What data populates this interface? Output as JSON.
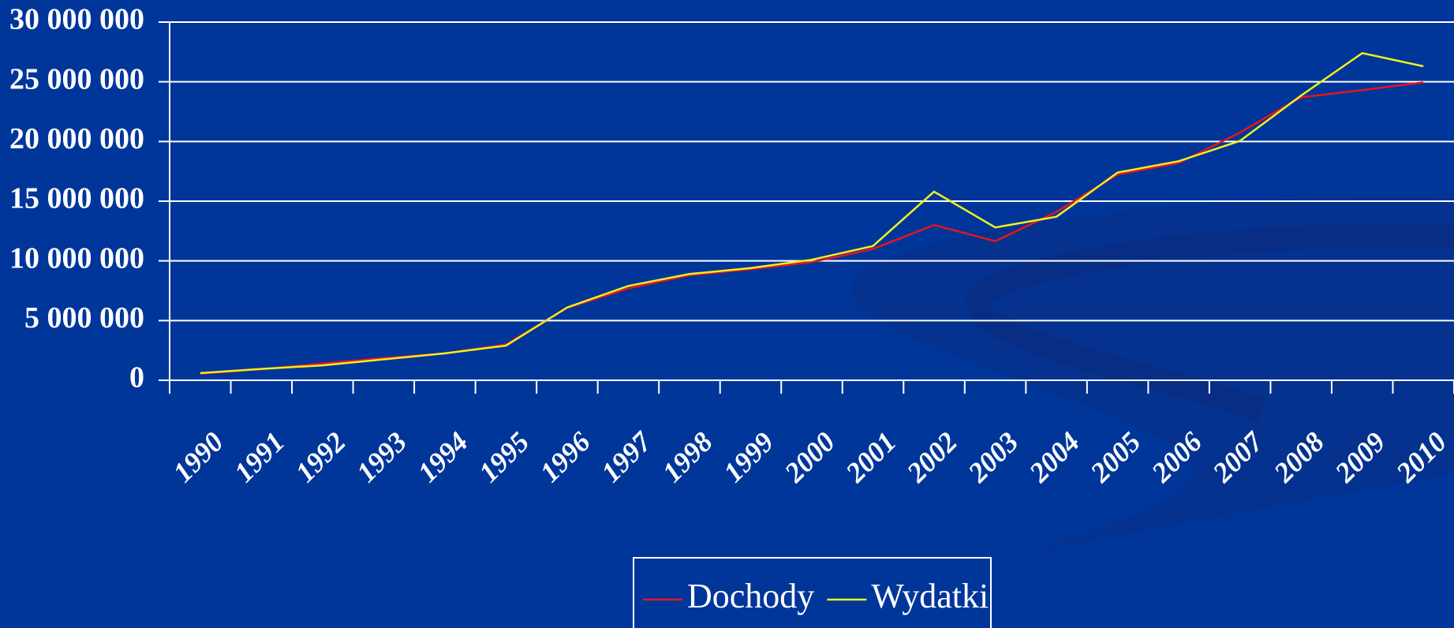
{
  "chart_data": {
    "type": "line",
    "categories": [
      "1990",
      "1991",
      "1992",
      "1993",
      "1994",
      "1995",
      "1996",
      "1997",
      "1998",
      "1999",
      "2000",
      "2001",
      "2002",
      "2003",
      "2004",
      "2005",
      "2006",
      "2007",
      "2008",
      "2009",
      "2010"
    ],
    "series": [
      {
        "name": "Dochody",
        "color": "#e8141e",
        "values": [
          550000,
          930000,
          1400000,
          1860000,
          2250000,
          3000000,
          6060000,
          7700000,
          8800000,
          9300000,
          9900000,
          11000000,
          13000000,
          11650000,
          14100000,
          17250000,
          18200000,
          20750000,
          23700000,
          24300000,
          24950000
        ]
      },
      {
        "name": "Wydatki",
        "color": "#f0f01e",
        "values": [
          600000,
          950000,
          1250000,
          1750000,
          2250000,
          2900000,
          6100000,
          7900000,
          8900000,
          9400000,
          10100000,
          11250000,
          15800000,
          12800000,
          13700000,
          17400000,
          18350000,
          20050000,
          23850000,
          27400000,
          26300000
        ]
      }
    ],
    "ylim": [
      0,
      30000000
    ],
    "yticks": [
      {
        "value": 0,
        "label": "0"
      },
      {
        "value": 5000000,
        "label": "5 000 000"
      },
      {
        "value": 10000000,
        "label": "10 000 000"
      },
      {
        "value": 15000000,
        "label": "15 000 000"
      },
      {
        "value": 20000000,
        "label": "20 000 000"
      },
      {
        "value": 25000000,
        "label": "25 000 000"
      },
      {
        "value": 30000000,
        "label": "30 000 000"
      }
    ],
    "grid": true
  }
}
